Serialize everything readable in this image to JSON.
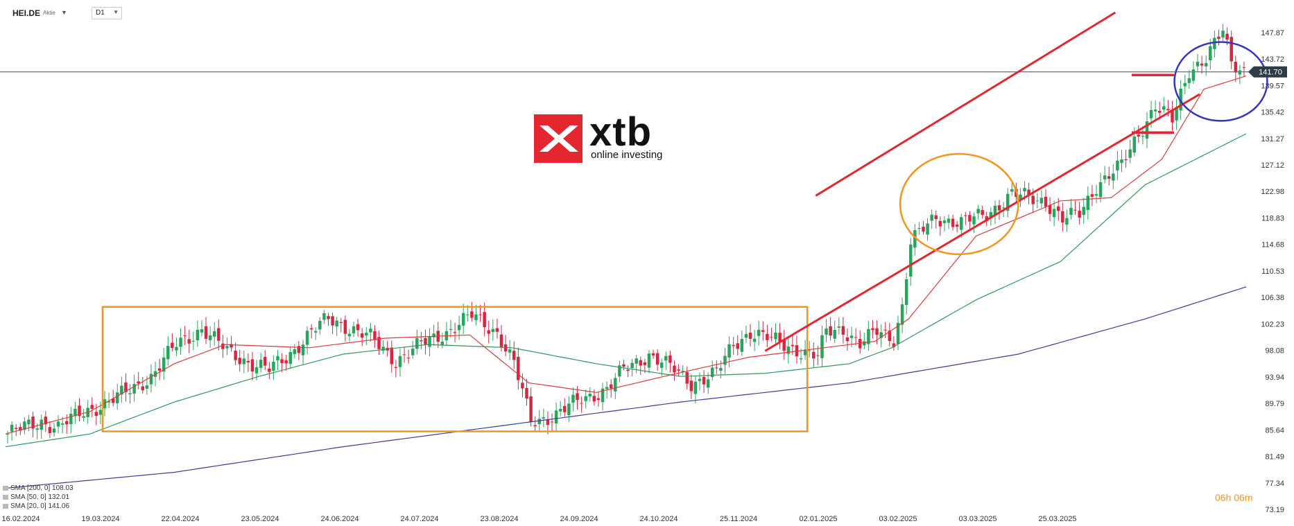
{
  "header": {
    "symbol": "HEI.DE",
    "symbol_type": "Aktie",
    "timeframe": "D1"
  },
  "logo": {
    "word": "xtb",
    "tagline": "online investing"
  },
  "current_price_label": "141.70",
  "countdown": "06h 06m",
  "legend": [
    {
      "label": "SMA [200, 0] 108.03",
      "color": "#3c3c9c"
    },
    {
      "label": "SMA [50, 0] 132.01",
      "color": "#2b9a5a"
    },
    {
      "label": "SMA [20, 0] 141.06",
      "color": "#e03a3a"
    }
  ],
  "chart_data": {
    "type": "candlestick",
    "x_tick_labels": [
      "16.02.2024",
      "19.03.2024",
      "22.04.2024",
      "23.05.2024",
      "24.06.2024",
      "24.07.2024",
      "23.08.2024",
      "24.09.2024",
      "24.10.2024",
      "25.11.2024",
      "02.01.2025",
      "03.02.2025",
      "03.03.2025",
      "25.03.2025"
    ],
    "y_tick_labels": [
      "147.87",
      "143.72",
      "139.57",
      "135.42",
      "131.27",
      "127.12",
      "122.98",
      "118.83",
      "114.68",
      "110.53",
      "106.38",
      "102.23",
      "98.08",
      "93.94",
      "89.79",
      "85.64",
      "81.49",
      "77.34",
      "73.19"
    ],
    "ylim": [
      73.19,
      151
    ],
    "current_price": 141.7,
    "close_path": [
      [
        0,
        85
      ],
      [
        8,
        87
      ],
      [
        12,
        86
      ],
      [
        18,
        88.5
      ],
      [
        24,
        90
      ],
      [
        28,
        91.5
      ],
      [
        34,
        94
      ],
      [
        40,
        99
      ],
      [
        46,
        101.5
      ],
      [
        52,
        98
      ],
      [
        58,
        96
      ],
      [
        62,
        95
      ],
      [
        66,
        97
      ],
      [
        72,
        101
      ],
      [
        76,
        103
      ],
      [
        80,
        102
      ],
      [
        86,
        100
      ],
      [
        92,
        96.5
      ],
      [
        98,
        99
      ],
      [
        104,
        101
      ],
      [
        110,
        103.5
      ],
      [
        116,
        101
      ],
      [
        120,
        96
      ],
      [
        124,
        87
      ],
      [
        130,
        88
      ],
      [
        136,
        90.5
      ],
      [
        142,
        92
      ],
      [
        146,
        95
      ],
      [
        152,
        97.5
      ],
      [
        158,
        95
      ],
      [
        162,
        93
      ],
      [
        168,
        94.5
      ],
      [
        172,
        99
      ],
      [
        176,
        101
      ],
      [
        180,
        100
      ],
      [
        184,
        99
      ],
      [
        188,
        98
      ],
      [
        192,
        97
      ],
      [
        194,
        101
      ],
      [
        198,
        101.5
      ],
      [
        202,
        99
      ],
      [
        206,
        101
      ],
      [
        210,
        100
      ],
      [
        212,
        105
      ],
      [
        214,
        115
      ],
      [
        220,
        119
      ],
      [
        226,
        118
      ],
      [
        232,
        119.5
      ],
      [
        238,
        122.5
      ],
      [
        242,
        122
      ],
      [
        246,
        121.5
      ],
      [
        250,
        118.5
      ],
      [
        254,
        119.5
      ],
      [
        258,
        124
      ],
      [
        264,
        127
      ],
      [
        268,
        132
      ],
      [
        272,
        136.5
      ],
      [
        276,
        134
      ],
      [
        280,
        142
      ],
      [
        284,
        144
      ],
      [
        288,
        148
      ],
      [
        290,
        143
      ],
      [
        294,
        141.7
      ]
    ],
    "series": [
      {
        "name": "SMA [200, 0]",
        "type": "line",
        "color": "#3c3c9c",
        "last": 108.03,
        "path": [
          [
            0,
            76.5
          ],
          [
            40,
            79
          ],
          [
            80,
            83
          ],
          [
            120,
            86.5
          ],
          [
            160,
            90
          ],
          [
            200,
            93
          ],
          [
            240,
            97.5
          ],
          [
            270,
            103
          ],
          [
            294,
            108.03
          ]
        ]
      },
      {
        "name": "SMA [50, 0]",
        "type": "line",
        "color": "#2b9a5a",
        "last": 132.01,
        "path": [
          [
            0,
            83
          ],
          [
            20,
            85
          ],
          [
            40,
            90
          ],
          [
            60,
            94
          ],
          [
            80,
            97.5
          ],
          [
            100,
            99
          ],
          [
            120,
            98.5
          ],
          [
            140,
            96
          ],
          [
            160,
            94
          ],
          [
            180,
            94.5
          ],
          [
            200,
            96
          ],
          [
            210,
            98.5
          ],
          [
            230,
            106
          ],
          [
            250,
            112
          ],
          [
            270,
            124
          ],
          [
            294,
            132.01
          ]
        ]
      },
      {
        "name": "SMA [20, 0]",
        "type": "line",
        "color": "#e03a3a",
        "last": 141.06,
        "path": [
          [
            0,
            85
          ],
          [
            20,
            88.5
          ],
          [
            40,
            96
          ],
          [
            52,
            99
          ],
          [
            72,
            98.5
          ],
          [
            90,
            100
          ],
          [
            110,
            100.5
          ],
          [
            124,
            93
          ],
          [
            140,
            91.5
          ],
          [
            156,
            94
          ],
          [
            176,
            97
          ],
          [
            206,
            99.5
          ],
          [
            214,
            103
          ],
          [
            230,
            116
          ],
          [
            250,
            121.5
          ],
          [
            262,
            122
          ],
          [
            274,
            128
          ],
          [
            284,
            139
          ],
          [
            294,
            141.06
          ]
        ]
      }
    ],
    "annotations": [
      {
        "type": "rectangle",
        "color": "#f7941d",
        "from_bar": 23,
        "to_bar": 190,
        "y_range": [
          85.4,
          104.9
        ]
      },
      {
        "type": "trendline",
        "color": "#e4262e",
        "points": [
          [
            192,
            122.3
          ],
          [
            263,
            151
          ]
        ]
      },
      {
        "type": "trendline",
        "color": "#e4262e",
        "points": [
          [
            180,
            98
          ],
          [
            283,
            138.2
          ]
        ]
      },
      {
        "type": "circle",
        "color": "#f7941d",
        "center": [
          226,
          121
        ],
        "radius_bars": 14
      },
      {
        "type": "circle",
        "color": "#3535c0",
        "center": [
          288,
          140.2
        ],
        "radius_bars": 11
      },
      {
        "type": "horizontal-segment",
        "color": "#e4262e",
        "y": 141.2
      },
      {
        "type": "horizontal-segment",
        "color": "#e4262e",
        "y": 132.2
      }
    ]
  }
}
